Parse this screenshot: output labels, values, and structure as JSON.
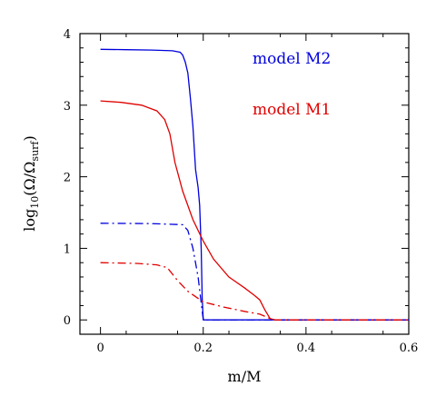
{
  "chart_data": {
    "type": "line",
    "title": "",
    "xlabel": "m/M",
    "ylabel": {
      "prefix": "log",
      "sub1": "10",
      "mid": "(Ω/Ω",
      "sub2": "surf",
      "suffix": ")"
    },
    "xlim": [
      -0.04,
      0.6
    ],
    "ylim": [
      -0.2,
      4.0
    ],
    "x_ticks": [
      0,
      0.2,
      0.4,
      0.6
    ],
    "y_ticks": [
      0,
      1,
      2,
      3,
      4
    ],
    "grid": false,
    "legend_position": "top-right",
    "series": [
      {
        "name": "model M2",
        "color": "#0000dd",
        "style": "solid",
        "points": [
          [
            0,
            3.78
          ],
          [
            0.05,
            3.775
          ],
          [
            0.1,
            3.77
          ],
          [
            0.14,
            3.76
          ],
          [
            0.155,
            3.74
          ],
          [
            0.16,
            3.7
          ],
          [
            0.165,
            3.6
          ],
          [
            0.17,
            3.45
          ],
          [
            0.175,
            3.1
          ],
          [
            0.18,
            2.7
          ],
          [
            0.185,
            2.1
          ],
          [
            0.19,
            1.85
          ],
          [
            0.193,
            1.6
          ],
          [
            0.196,
            1.0
          ],
          [
            0.198,
            0.3
          ],
          [
            0.2,
            0.0
          ],
          [
            0.6,
            0.0
          ]
        ]
      },
      {
        "name": "model M1",
        "color": "#e00000",
        "style": "solid",
        "points": [
          [
            0,
            3.06
          ],
          [
            0.04,
            3.04
          ],
          [
            0.08,
            3.0
          ],
          [
            0.11,
            2.92
          ],
          [
            0.125,
            2.8
          ],
          [
            0.135,
            2.6
          ],
          [
            0.145,
            2.2
          ],
          [
            0.16,
            1.8
          ],
          [
            0.18,
            1.4
          ],
          [
            0.2,
            1.1
          ],
          [
            0.22,
            0.85
          ],
          [
            0.25,
            0.6
          ],
          [
            0.28,
            0.45
          ],
          [
            0.3,
            0.34
          ],
          [
            0.31,
            0.28
          ],
          [
            0.32,
            0.14
          ],
          [
            0.33,
            0.02
          ],
          [
            0.34,
            0.0
          ],
          [
            0.6,
            0.0
          ]
        ]
      },
      {
        "name": "",
        "color": "#0000dd",
        "style": "dashdot",
        "points": [
          [
            0,
            1.35
          ],
          [
            0.1,
            1.345
          ],
          [
            0.16,
            1.33
          ],
          [
            0.17,
            1.25
          ],
          [
            0.18,
            1.0
          ],
          [
            0.19,
            0.6
          ],
          [
            0.195,
            0.3
          ],
          [
            0.2,
            0.0
          ],
          [
            0.6,
            0.0
          ]
        ]
      },
      {
        "name": "",
        "color": "#e00000",
        "style": "dashdot",
        "points": [
          [
            0,
            0.8
          ],
          [
            0.07,
            0.79
          ],
          [
            0.11,
            0.77
          ],
          [
            0.13,
            0.73
          ],
          [
            0.15,
            0.55
          ],
          [
            0.17,
            0.4
          ],
          [
            0.2,
            0.25
          ],
          [
            0.24,
            0.18
          ],
          [
            0.28,
            0.12
          ],
          [
            0.31,
            0.08
          ],
          [
            0.33,
            0.02
          ],
          [
            0.34,
            0.0
          ],
          [
            0.6,
            0.0
          ]
        ]
      }
    ]
  }
}
